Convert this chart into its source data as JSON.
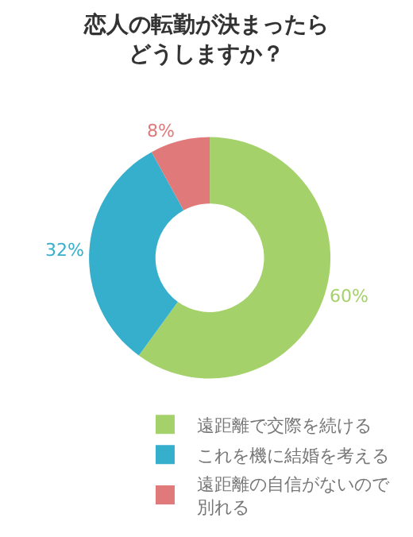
{
  "chart_data": {
    "type": "donut",
    "title": "恋人の転勤が決まったらどうしますか？",
    "categories": [
      "遠距離で交際を続ける",
      "これを機に結婚を考える",
      "遠距離の自信がないので別れる"
    ],
    "values": [
      60,
      32,
      8
    ],
    "colors": [
      "#a5d16b",
      "#35afcc",
      "#e07a7a"
    ],
    "value_labels": [
      "60%",
      "32%",
      "8%"
    ],
    "legend": "bottom right"
  }
}
